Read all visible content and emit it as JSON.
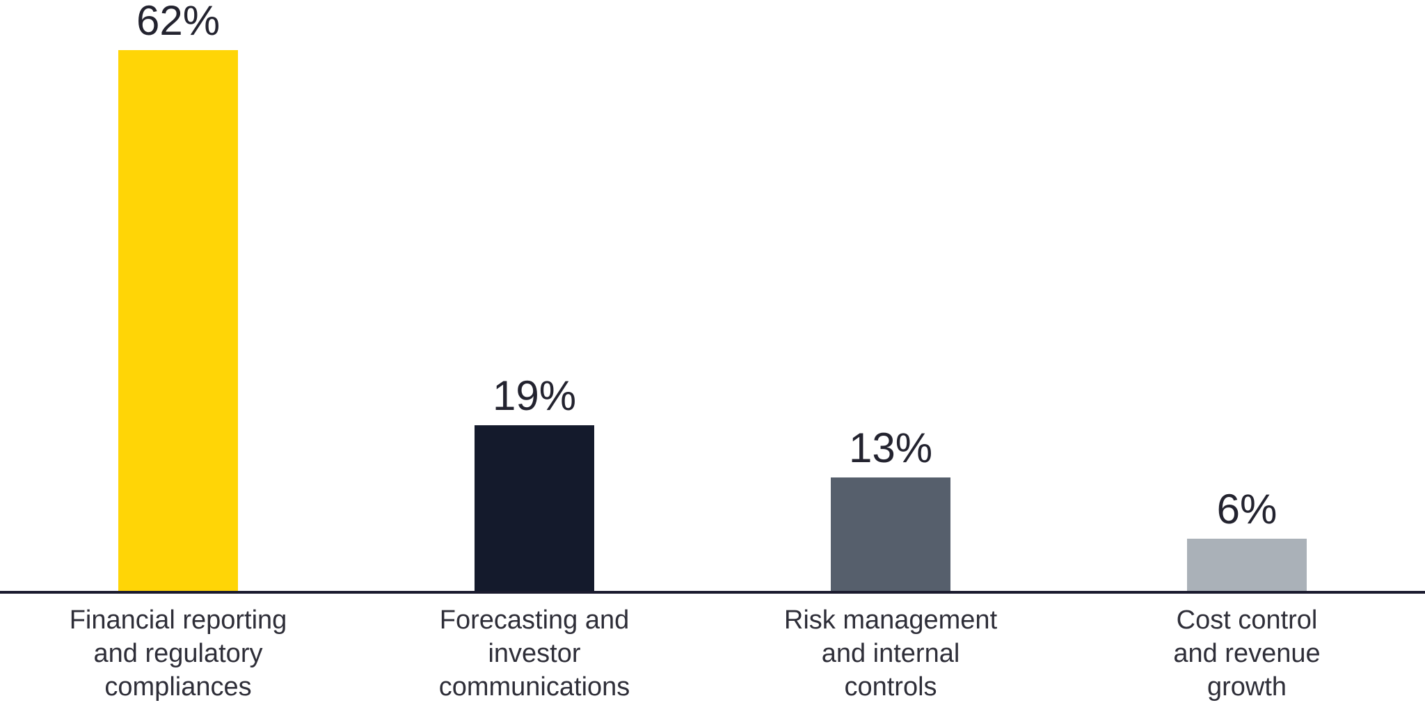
{
  "chart_data": {
    "type": "bar",
    "categories": [
      "Financial reporting and regulatory compliances",
      "Forecasting and investor communications",
      "Risk management and internal controls",
      "Cost control and revenue growth"
    ],
    "values": [
      62,
      19,
      13,
      6
    ],
    "value_labels": [
      "62%",
      "19%",
      "13%",
      "6%"
    ],
    "label_lines": [
      [
        "Financial reporting",
        "and regulatory",
        "compliances"
      ],
      [
        "Forecasting and",
        "investor",
        "communications"
      ],
      [
        "Risk management",
        "and internal",
        "controls"
      ],
      [
        "Cost control",
        "and revenue",
        "growth"
      ]
    ],
    "bar_colors": [
      "#FFD506",
      "#141A2C",
      "#565F6C",
      "#AAB1B8"
    ],
    "title": "",
    "xlabel": "",
    "ylabel": "",
    "ylim": [
      0,
      65
    ],
    "grid": false,
    "legend": false,
    "axis_line_color": "#1A1A2E",
    "value_label_color": "#23232F",
    "category_label_color": "#2E2E38",
    "background_color": "#FFFFFF"
  }
}
